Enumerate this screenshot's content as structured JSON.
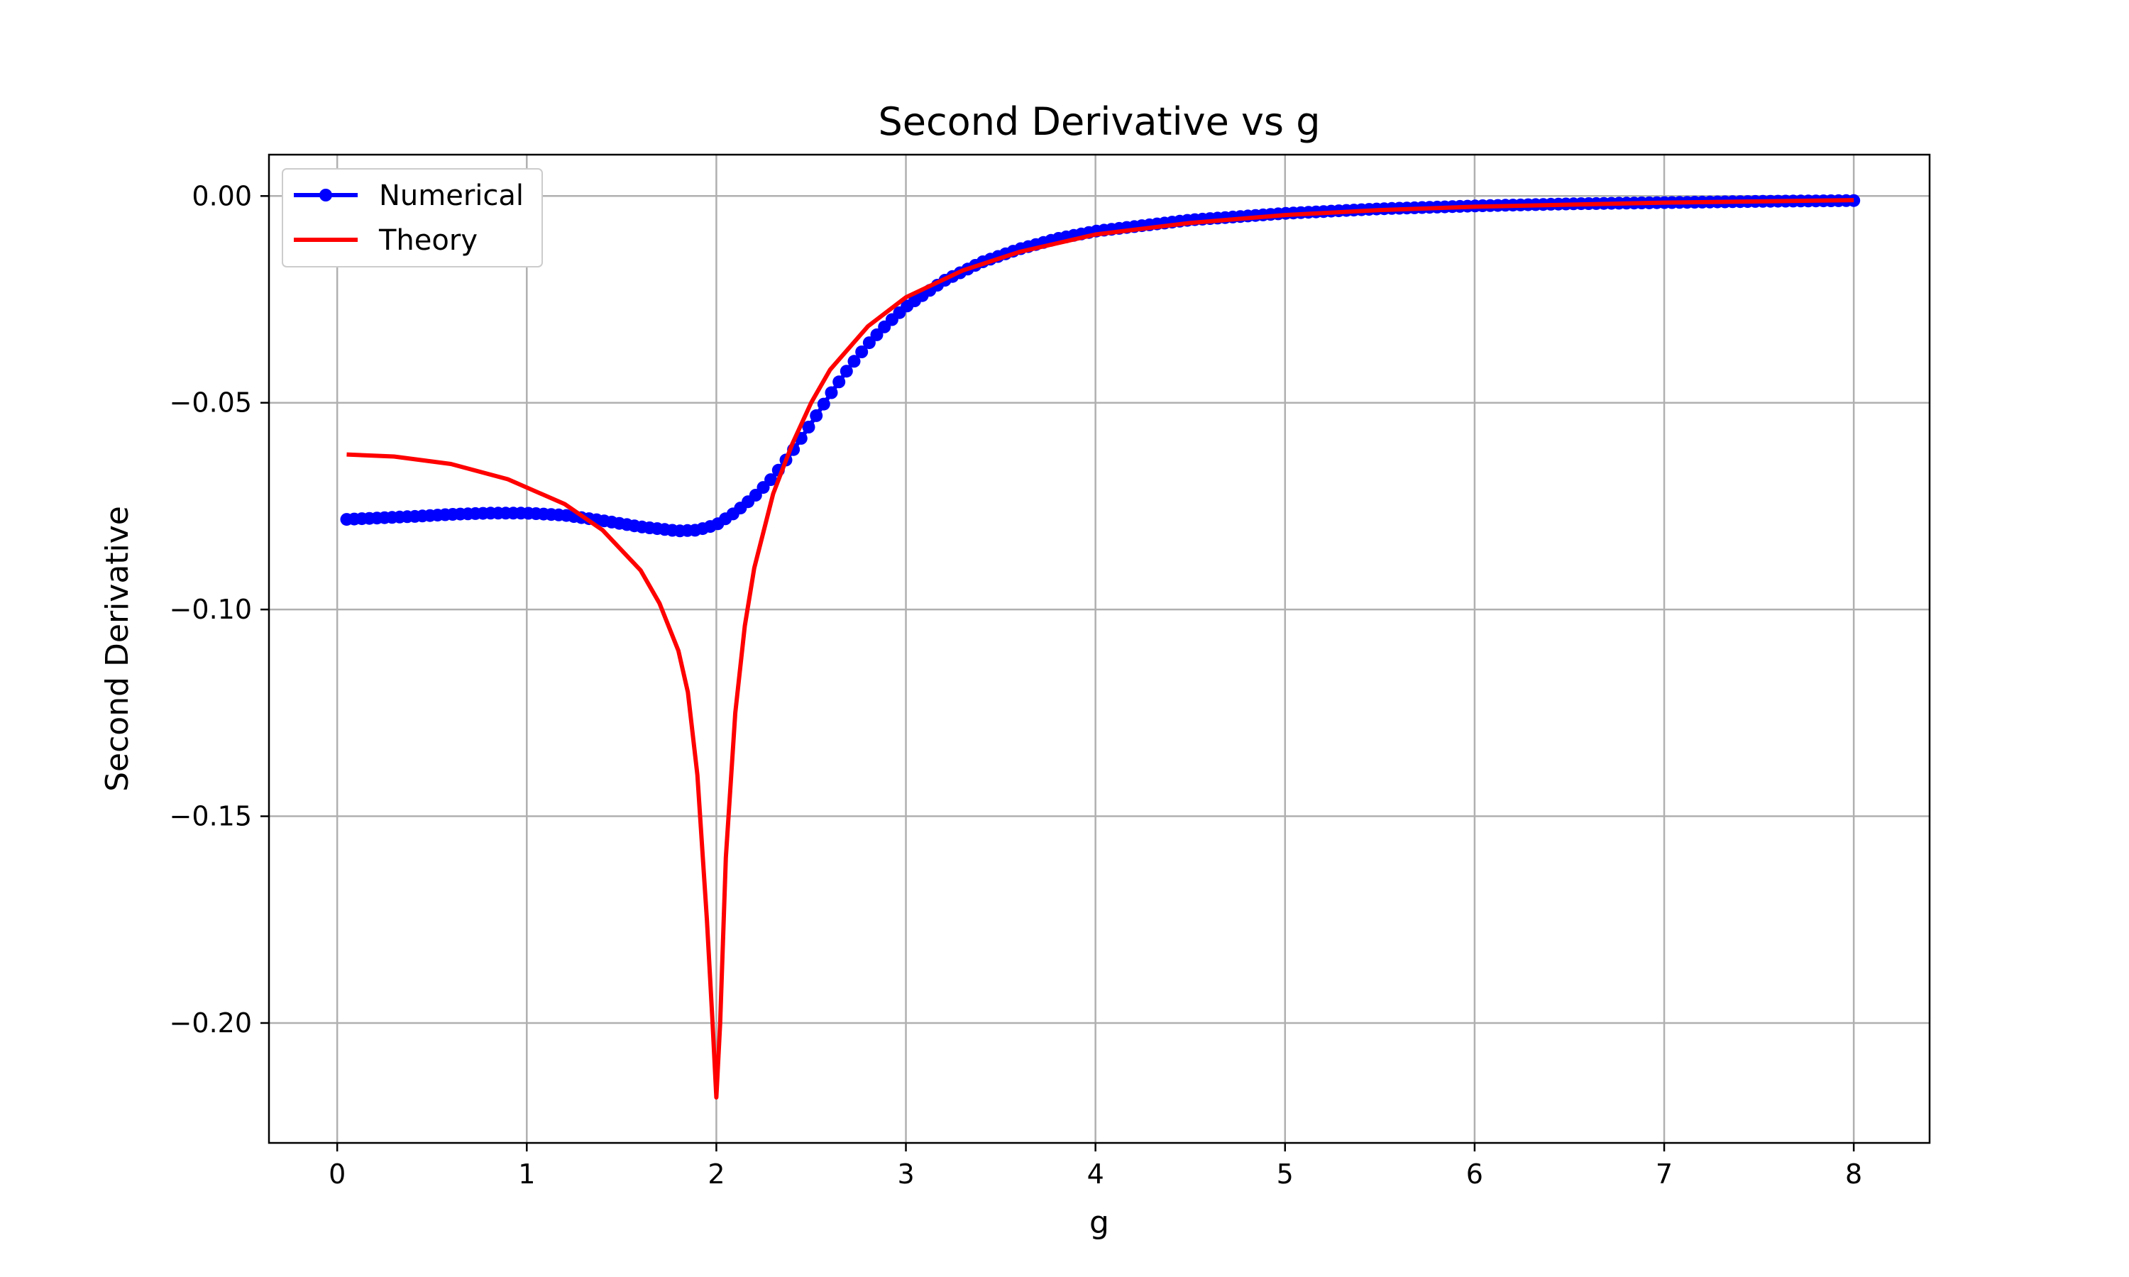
{
  "chart_data": {
    "type": "line",
    "title": "Second Derivative vs g",
    "xlabel": "g",
    "ylabel": "Second Derivative",
    "xlim": [
      -0.36,
      8.4
    ],
    "ylim": [
      -0.229,
      0.01
    ],
    "xticks": [
      0,
      1,
      2,
      3,
      4,
      5,
      6,
      7,
      8
    ],
    "xtick_labels": [
      "0",
      "1",
      "2",
      "3",
      "4",
      "5",
      "6",
      "7",
      "8"
    ],
    "yticks": [
      0.0,
      -0.05,
      -0.1,
      -0.15,
      -0.2
    ],
    "ytick_labels": [
      "0.00",
      "−0.05",
      "−0.10",
      "−0.15",
      "−0.20"
    ],
    "grid": true,
    "legend_position": "upper-left",
    "colors": {
      "numerical": "#0000ff",
      "theory": "#ff0000",
      "grid": "#b0b0b0",
      "frame": "#000000"
    },
    "series": [
      {
        "name": "Numerical",
        "style": "line-with-circle-markers",
        "x": [
          0.05,
          0.2,
          0.4,
          0.6,
          0.8,
          1.0,
          1.2,
          1.4,
          1.6,
          1.8,
          1.9,
          2.0,
          2.1,
          2.2,
          2.3,
          2.4,
          2.5,
          2.6,
          2.7,
          2.8,
          2.9,
          3.0,
          3.2,
          3.4,
          3.6,
          3.8,
          4.0,
          4.5,
          5.0,
          5.5,
          6.0,
          6.5,
          7.0,
          7.5,
          8.0
        ],
        "y": [
          -0.0782,
          -0.0779,
          -0.0775,
          -0.077,
          -0.0767,
          -0.0767,
          -0.0772,
          -0.0785,
          -0.08,
          -0.081,
          -0.0808,
          -0.0795,
          -0.0765,
          -0.0727,
          -0.068,
          -0.0618,
          -0.055,
          -0.048,
          -0.0415,
          -0.0358,
          -0.031,
          -0.0268,
          -0.0205,
          -0.016,
          -0.0128,
          -0.0103,
          -0.0085,
          -0.0058,
          -0.0042,
          -0.0031,
          -0.0024,
          -0.0019,
          -0.0016,
          -0.0013,
          -0.0011
        ]
      },
      {
        "name": "Theory",
        "style": "line",
        "x": [
          0.05,
          0.3,
          0.6,
          0.9,
          1.2,
          1.4,
          1.6,
          1.7,
          1.8,
          1.85,
          1.9,
          1.95,
          1.98,
          2.0,
          2.02,
          2.05,
          2.1,
          2.15,
          2.2,
          2.3,
          2.4,
          2.5,
          2.6,
          2.8,
          3.0,
          3.3,
          3.6,
          4.0,
          4.5,
          5.0,
          5.5,
          6.0,
          7.0,
          8.0
        ],
        "y": [
          -0.0625,
          -0.063,
          -0.0648,
          -0.0685,
          -0.0745,
          -0.0808,
          -0.0905,
          -0.0985,
          -0.11,
          -0.12,
          -0.14,
          -0.175,
          -0.2,
          -0.218,
          -0.2,
          -0.16,
          -0.125,
          -0.104,
          -0.09,
          -0.072,
          -0.06,
          -0.05,
          -0.042,
          -0.0315,
          -0.0245,
          -0.018,
          -0.0135,
          -0.0093,
          -0.0065,
          -0.0046,
          -0.0034,
          -0.0026,
          -0.0016,
          -0.001
        ]
      }
    ]
  }
}
